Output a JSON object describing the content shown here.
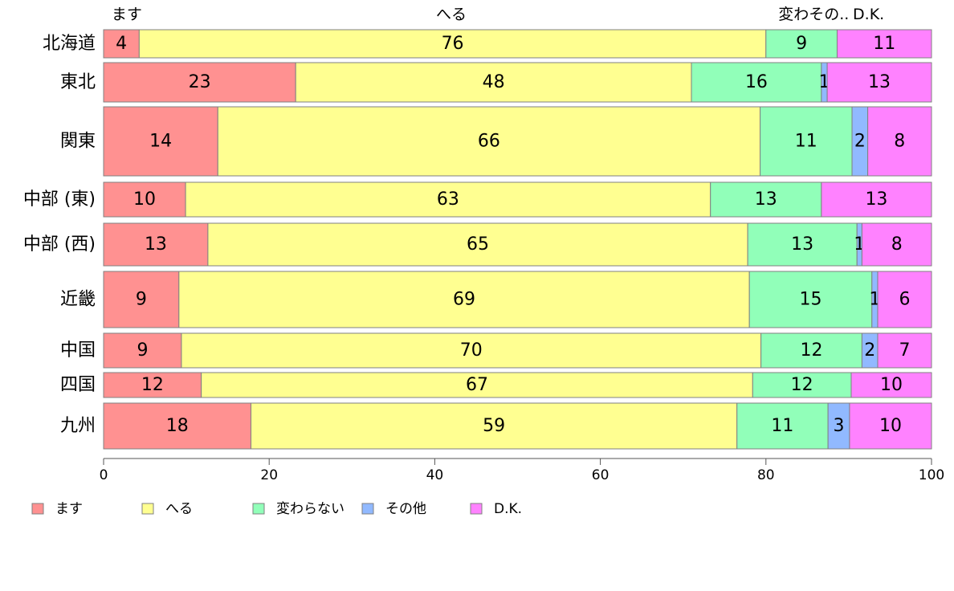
{
  "chart_data": {
    "type": "bar",
    "orientation": "horizontal",
    "stacked": true,
    "title": "",
    "xlabel": "",
    "ylabel": "",
    "xlim": [
      0,
      100
    ],
    "xticks": [
      0,
      20,
      40,
      60,
      80,
      100
    ],
    "grid": false,
    "legend_position": "bottom",
    "categories": [
      "北海道",
      "東北",
      "関東",
      "中部 (東)",
      "中部 (西)",
      "近畿",
      "中国",
      "四国",
      "九州"
    ],
    "top_labels": [
      "ます",
      "へる",
      "変わその..",
      "D.K."
    ],
    "series": [
      {
        "name": "ます",
        "color": "#ff9191",
        "values": [
          4.3,
          23.2,
          13.8,
          9.9,
          12.6,
          9.1,
          9.4,
          11.8,
          17.8
        ],
        "labels": [
          "4",
          "23",
          "14",
          "10",
          "13",
          "9",
          "9",
          "12",
          "18"
        ]
      },
      {
        "name": "へる",
        "color": "#ffff91",
        "values": [
          75.7,
          47.8,
          65.5,
          63.4,
          65.2,
          68.9,
          70.0,
          66.6,
          58.7
        ],
        "labels": [
          "76",
          "48",
          "66",
          "63",
          "65",
          "69",
          "70",
          "67",
          "59"
        ]
      },
      {
        "name": "変わらない",
        "color": "#91ffb9",
        "values": [
          8.6,
          15.7,
          11.1,
          13.4,
          13.2,
          14.8,
          12.2,
          11.9,
          11.0
        ],
        "labels": [
          "9",
          "16",
          "11",
          "13",
          "13",
          "15",
          "12",
          "12",
          "11"
        ]
      },
      {
        "name": "その他",
        "color": "#91b9ff",
        "values": [
          0.0,
          0.7,
          1.9,
          0.0,
          0.6,
          0.7,
          1.9,
          0.0,
          2.6
        ],
        "labels": [
          "",
          "1",
          "2",
          "",
          "1",
          "1",
          "2",
          "",
          "3"
        ]
      },
      {
        "name": "D.K.",
        "color": "#ff82ff",
        "values": [
          11.4,
          12.6,
          7.7,
          13.3,
          8.4,
          6.5,
          6.5,
          9.7,
          9.9
        ],
        "labels": [
          "11",
          "13",
          "8",
          "13",
          "8",
          "6",
          "7",
          "10",
          "10"
        ]
      }
    ]
  }
}
